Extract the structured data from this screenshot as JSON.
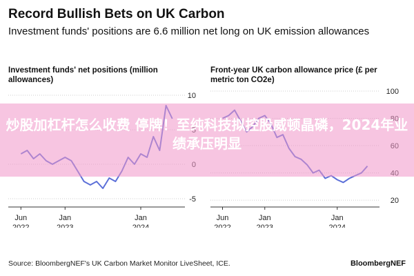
{
  "header": {
    "title": "Record Bullish Bets on UK Carbon",
    "subtitle": "Investment funds' positions are 6.6 million net long on UK emission allowances"
  },
  "panels": {
    "left_title": "Investment funds' net positions (million allowances)",
    "right_title": "Front-year UK carbon allowance price (£ per metric ton CO2e)"
  },
  "footer": {
    "source": "Source: BloombergNEF's UK Carbon Market Monitor LiveSheet, ICE.",
    "brand": "BloombergNEF"
  },
  "overlay": {
    "text": "炒股加杠杆怎么收费 停牌！至纯科技拟控股威顿晶磷，2024年业绩承压明显"
  },
  "colors": {
    "series": "#5b6fd8",
    "gridline": "#cccccc",
    "banner": "#f096c8"
  },
  "chart_data": [
    {
      "type": "line",
      "title": "Investment funds' net positions (million allowances)",
      "ylim": [
        -6,
        11
      ],
      "yticks": [
        10,
        5,
        0,
        -5
      ],
      "ytick_labels": [
        "10",
        "5",
        "0",
        "-5"
      ],
      "xticks": [
        "2022-06",
        "2023-01",
        "2024-01"
      ],
      "xtick_labels": [
        [
          "Jun",
          "2022"
        ],
        [
          "Jan",
          "2023"
        ],
        [
          "Jan",
          "2024"
        ]
      ],
      "grid": true,
      "series": [
        {
          "x": [
            "2022-06",
            "2022-07",
            "2022-08",
            "2022-09",
            "2022-10",
            "2022-11",
            "2022-12",
            "2023-01",
            "2023-02",
            "2023-03",
            "2023-04",
            "2023-05",
            "2023-06",
            "2023-07",
            "2023-08",
            "2023-09",
            "2023-10",
            "2023-11",
            "2023-12",
            "2024-01",
            "2024-02",
            "2024-03",
            "2024-04",
            "2024-05",
            "2024-06"
          ],
          "y": [
            1.5,
            2.0,
            0.8,
            1.5,
            0.5,
            0.0,
            0.5,
            1.0,
            0.5,
            -1.0,
            -2.5,
            -3.0,
            -2.5,
            -3.5,
            -2.0,
            -2.5,
            -1.0,
            1.0,
            0.0,
            1.5,
            1.0,
            4.0,
            2.0,
            8.5,
            6.6
          ]
        }
      ]
    },
    {
      "type": "line",
      "title": "Front-year UK carbon allowance price (£ per metric ton CO2e)",
      "ylim": [
        15,
        102
      ],
      "yticks": [
        100,
        80,
        60,
        40,
        20
      ],
      "ytick_labels": [
        "100",
        "80",
        "60",
        "40",
        "20"
      ],
      "xticks": [
        "2022-06",
        "2023-01",
        "2024-01"
      ],
      "xtick_labels": [
        [
          "Jun",
          "2022"
        ],
        [
          "Jan",
          "2023"
        ],
        [
          "Jan",
          "2024"
        ]
      ],
      "grid": true,
      "series": [
        {
          "x": [
            "2022-06",
            "2022-07",
            "2022-08",
            "2022-09",
            "2022-10",
            "2022-11",
            "2022-12",
            "2023-01",
            "2023-02",
            "2023-03",
            "2023-04",
            "2023-05",
            "2023-06",
            "2023-07",
            "2023-08",
            "2023-09",
            "2023-10",
            "2023-11",
            "2023-12",
            "2024-01",
            "2024-02",
            "2024-03",
            "2024-04",
            "2024-05",
            "2024-06"
          ],
          "y": [
            80,
            82,
            86,
            78,
            70,
            74,
            80,
            82,
            76,
            66,
            68,
            58,
            52,
            50,
            46,
            40,
            42,
            36,
            38,
            35,
            33,
            36,
            38,
            40,
            45
          ]
        }
      ]
    }
  ]
}
